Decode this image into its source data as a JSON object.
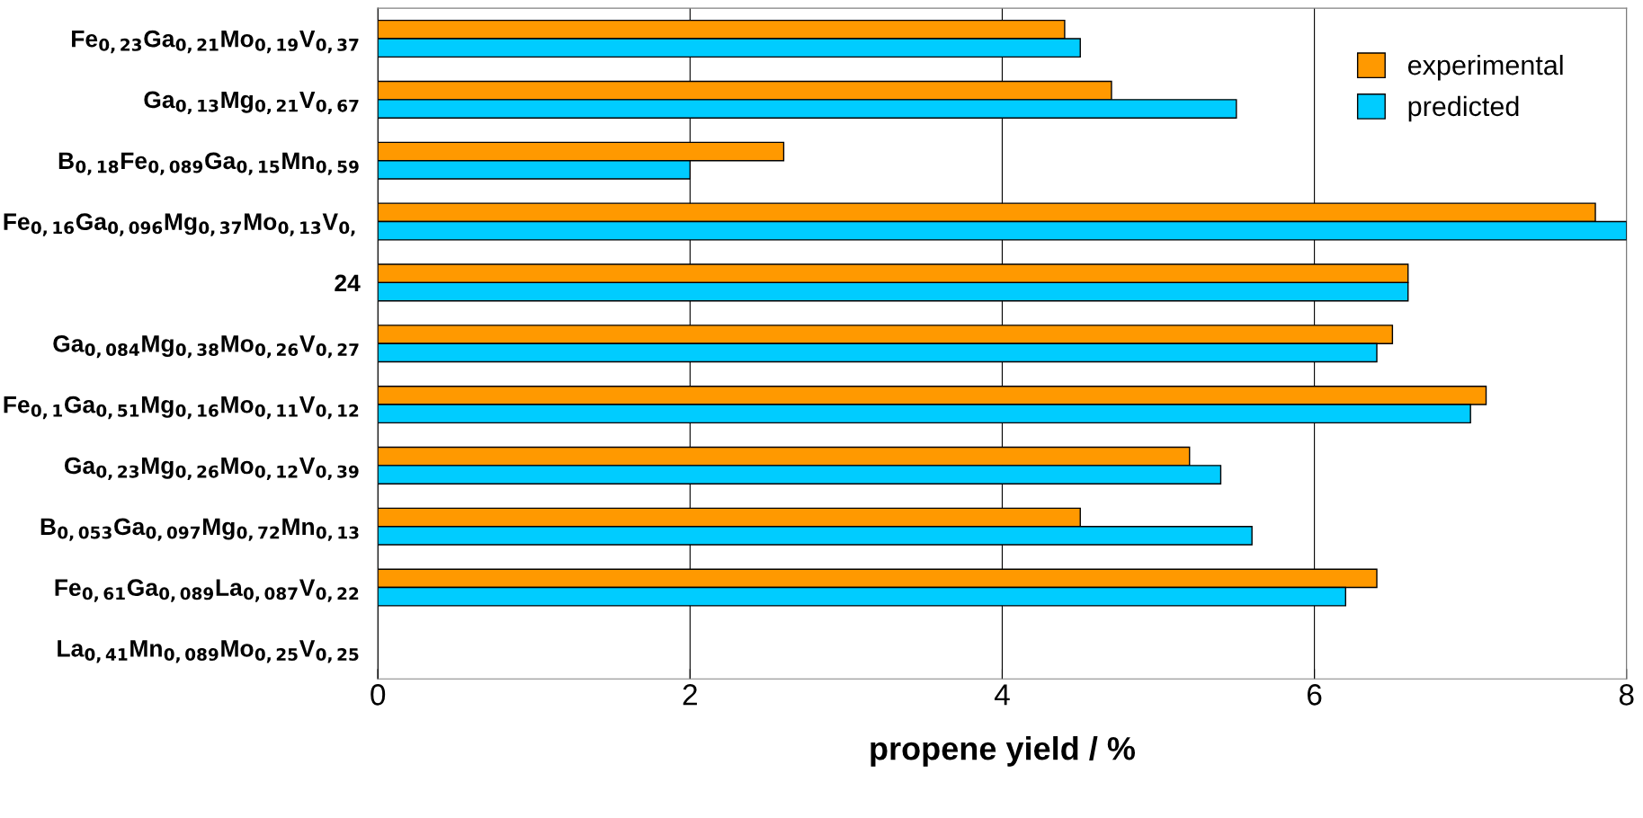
{
  "chart_data": {
    "type": "bar",
    "orientation": "horizontal",
    "xlabel": "propene yield / %",
    "categories": [
      "Fe$_{0,23}$Ga$_{0,21}$Mo$_{0,19}$V$_{0,37}$",
      "Ga$_{0,13}$Mg$_{0,21}$V$_{0,67}$",
      "B$_{0,18}$Fe$_{0,089}$Ga$_{0,15}$Mn$_{0,59}$",
      "Fe$_{0,16}$Ga$_{0,096}$Mg$_{0,37}$Mo$_{0,13}$V$_{0,}$",
      "24",
      "Ga$_{0,084}$Mg$_{0,38}$Mo$_{0,26}$V$_{0,27}$",
      "Fe$_{0,1}$Ga$_{0,51}$Mg$_{0,16}$Mo$_{0,11}$V$_{0,12}$",
      "Ga$_{0,23}$Mg$_{0,26}$Mo$_{0,12}$V$_{0,39}$",
      "B$_{0,053}$Ga$_{0,097}$Mg$_{0,72}$Mn$_{0,13}$",
      "Fe$_{0,61}$Ga$_{0,089}$La$_{0,087}$V$_{0,22}$",
      "La$_{0,41}$Mn$_{0,089}$Mo$_{0,25}$V$_{0,25}$"
    ],
    "series": [
      {
        "name": "experimental",
        "color": "#ff9900",
        "values": [
          4.4,
          4.7,
          2.6,
          7.8,
          6.6,
          6.5,
          7.1,
          5.2,
          4.5,
          6.4,
          null
        ]
      },
      {
        "name": "predicted",
        "color": "#00ccff",
        "values": [
          4.5,
          5.5,
          2.0,
          8.0,
          6.6,
          6.4,
          7.0,
          5.4,
          5.6,
          6.2,
          null
        ]
      }
    ],
    "xlim": [
      0,
      8
    ],
    "xticks": [
      0,
      2,
      4,
      6,
      8
    ],
    "grid": "x",
    "legend": "top right"
  }
}
